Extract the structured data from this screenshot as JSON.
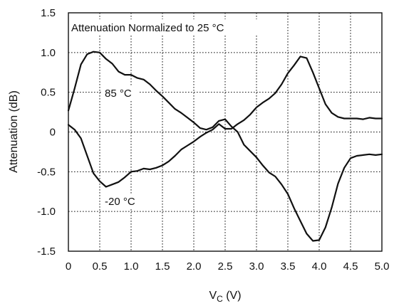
{
  "chart_data": {
    "type": "line",
    "subtitle": "Attenuation Normalized to 25 °C",
    "xlabel": "V",
    "xlabel_sub": "C",
    "xlabel_unit": " (V)",
    "ylabel": "Attenuation (dB)",
    "xlim": [
      0,
      5.0
    ],
    "ylim": [
      -1.5,
      1.5
    ],
    "x_ticks": [
      0,
      0.5,
      1.0,
      1.5,
      2.0,
      2.5,
      3.0,
      3.5,
      4.0,
      4.5,
      5.0
    ],
    "x_tick_labels": [
      "0",
      "0.5",
      "1.0",
      "1.5",
      "2.0",
      "2.5",
      "3.0",
      "3.5",
      "4.0",
      "4.5",
      "5.0"
    ],
    "y_ticks": [
      1.5,
      1.0,
      0.5,
      0,
      -0.5,
      -1.0,
      -1.5
    ],
    "y_tick_labels": [
      "1.5",
      "1.0",
      "0.5",
      "0",
      "-0.5",
      "-1.0",
      "-1.5"
    ],
    "grid": true,
    "annotations": [
      {
        "text": "85 °C",
        "series": 0
      },
      {
        "text": "-20 °C",
        "series": 1
      }
    ],
    "series": [
      {
        "x": [
          0,
          0.1,
          0.2,
          0.3,
          0.4,
          0.5,
          0.6,
          0.7,
          0.8,
          0.9,
          1.0,
          1.1,
          1.2,
          1.3,
          1.4,
          1.5,
          1.6,
          1.7,
          1.8,
          1.9,
          2.0,
          2.1,
          2.2,
          2.3,
          2.4,
          2.5,
          2.6,
          2.7,
          2.8,
          2.9,
          3.0,
          3.1,
          3.2,
          3.3,
          3.4,
          3.5,
          3.6,
          3.7,
          3.8,
          3.9,
          4.0,
          4.1,
          4.2,
          4.3,
          4.4,
          4.5,
          4.6,
          4.7,
          4.8,
          4.9,
          5.0
        ],
        "values": [
          0.27,
          0.55,
          0.85,
          0.98,
          1.01,
          1.0,
          0.92,
          0.86,
          0.76,
          0.72,
          0.72,
          0.68,
          0.66,
          0.6,
          0.52,
          0.45,
          0.37,
          0.29,
          0.24,
          0.18,
          0.12,
          0.05,
          0.03,
          0.06,
          0.14,
          0.16,
          0.07,
          0.0,
          -0.16,
          -0.24,
          -0.32,
          -0.42,
          -0.51,
          -0.56,
          -0.66,
          -0.78,
          -0.96,
          -1.12,
          -1.28,
          -1.37,
          -1.36,
          -1.2,
          -0.95,
          -0.65,
          -0.45,
          -0.33,
          -0.3,
          -0.29,
          -0.28,
          -0.29,
          -0.28
        ]
      },
      {
        "x": [
          0,
          0.1,
          0.2,
          0.3,
          0.4,
          0.5,
          0.6,
          0.7,
          0.8,
          0.9,
          1.0,
          1.1,
          1.2,
          1.3,
          1.4,
          1.5,
          1.6,
          1.7,
          1.8,
          1.9,
          2.0,
          2.1,
          2.2,
          2.3,
          2.4,
          2.5,
          2.6,
          2.7,
          2.8,
          2.9,
          3.0,
          3.1,
          3.2,
          3.3,
          3.4,
          3.5,
          3.6,
          3.7,
          3.8,
          3.9,
          4.0,
          4.1,
          4.2,
          4.3,
          4.4,
          4.5,
          4.6,
          4.7,
          4.8,
          4.9,
          5.0
        ],
        "values": [
          0.09,
          0.03,
          -0.08,
          -0.3,
          -0.52,
          -0.62,
          -0.69,
          -0.66,
          -0.63,
          -0.57,
          -0.5,
          -0.49,
          -0.46,
          -0.47,
          -0.45,
          -0.42,
          -0.37,
          -0.3,
          -0.22,
          -0.17,
          -0.12,
          -0.06,
          -0.01,
          0.03,
          0.1,
          0.04,
          0.04,
          0.1,
          0.15,
          0.22,
          0.31,
          0.37,
          0.42,
          0.49,
          0.6,
          0.74,
          0.84,
          0.95,
          0.93,
          0.75,
          0.55,
          0.35,
          0.24,
          0.19,
          0.17,
          0.17,
          0.17,
          0.16,
          0.18,
          0.17,
          0.17
        ]
      }
    ]
  }
}
